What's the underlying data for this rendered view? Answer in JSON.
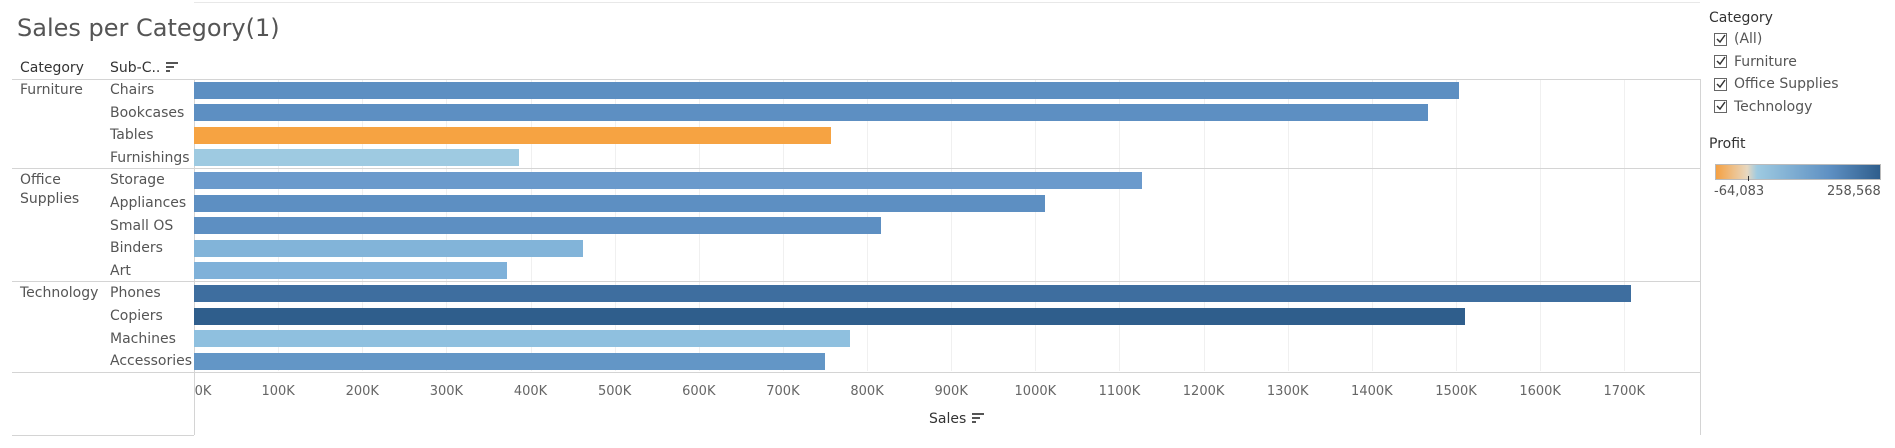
{
  "title": "Sales per Category(1)",
  "headers": {
    "category": "Category",
    "subcategory": "Sub-C..",
    "sales_axis": "Sales"
  },
  "icons": {
    "sort_subcategory": "sort-descending-icon",
    "sort_sales": "sort-descending-icon"
  },
  "filter": {
    "title": "Category",
    "options": [
      {
        "label": "(All)",
        "checked": true
      },
      {
        "label": "Furniture",
        "checked": true
      },
      {
        "label": "Office Supplies",
        "checked": true
      },
      {
        "label": "Technology",
        "checked": true
      }
    ]
  },
  "profit_legend": {
    "title": "Profit",
    "min_label": "-64,083",
    "max_label": "258,568",
    "min_color": "#f5a042",
    "mid_color": "#9ecae1",
    "max_color": "#2f5e8c"
  },
  "chart_data": {
    "type": "bar",
    "orientation": "horizontal",
    "xlabel": "Sales",
    "xlim": [
      0,
      1800000
    ],
    "x_ticks": [
      "0K",
      "100K",
      "200K",
      "300K",
      "400K",
      "500K",
      "600K",
      "700K",
      "800K",
      "900K",
      "1000K",
      "1100K",
      "1200K",
      "1300K",
      "1400K",
      "1500K",
      "1600K",
      "1700K"
    ],
    "groups": [
      {
        "category": "Furniture",
        "category_lines": [
          "Furniture"
        ],
        "items": [
          {
            "label": "Chairs",
            "value": 1503000,
            "color": "#5d8fc2"
          },
          {
            "label": "Bookcases",
            "value": 1467000,
            "color": "#5d8fc2"
          },
          {
            "label": "Tables",
            "value": 757000,
            "color": "#f6a342"
          },
          {
            "label": "Furnishings",
            "value": 386000,
            "color": "#9ecae1"
          }
        ]
      },
      {
        "category": "Office Supplies",
        "category_lines": [
          "Office",
          "Supplies"
        ],
        "items": [
          {
            "label": "Storage",
            "value": 1127000,
            "color": "#6b9acc"
          },
          {
            "label": "Appliances",
            "value": 1011000,
            "color": "#5d8fc2"
          },
          {
            "label": "Small OS",
            "value": 816000,
            "color": "#5d8fc2"
          },
          {
            "label": "Binders",
            "value": 462000,
            "color": "#82b4d9"
          },
          {
            "label": "Art",
            "value": 372000,
            "color": "#7fb1d9"
          }
        ]
      },
      {
        "category": "Technology",
        "category_lines": [
          "Technology"
        ],
        "items": [
          {
            "label": "Phones",
            "value": 1708000,
            "color": "#3e6e9f"
          },
          {
            "label": "Copiers",
            "value": 1511000,
            "color": "#2f5e8c"
          },
          {
            "label": "Machines",
            "value": 780000,
            "color": "#8fc0df"
          },
          {
            "label": "Accessories",
            "value": 750000,
            "color": "#6396c6"
          }
        ]
      }
    ]
  }
}
